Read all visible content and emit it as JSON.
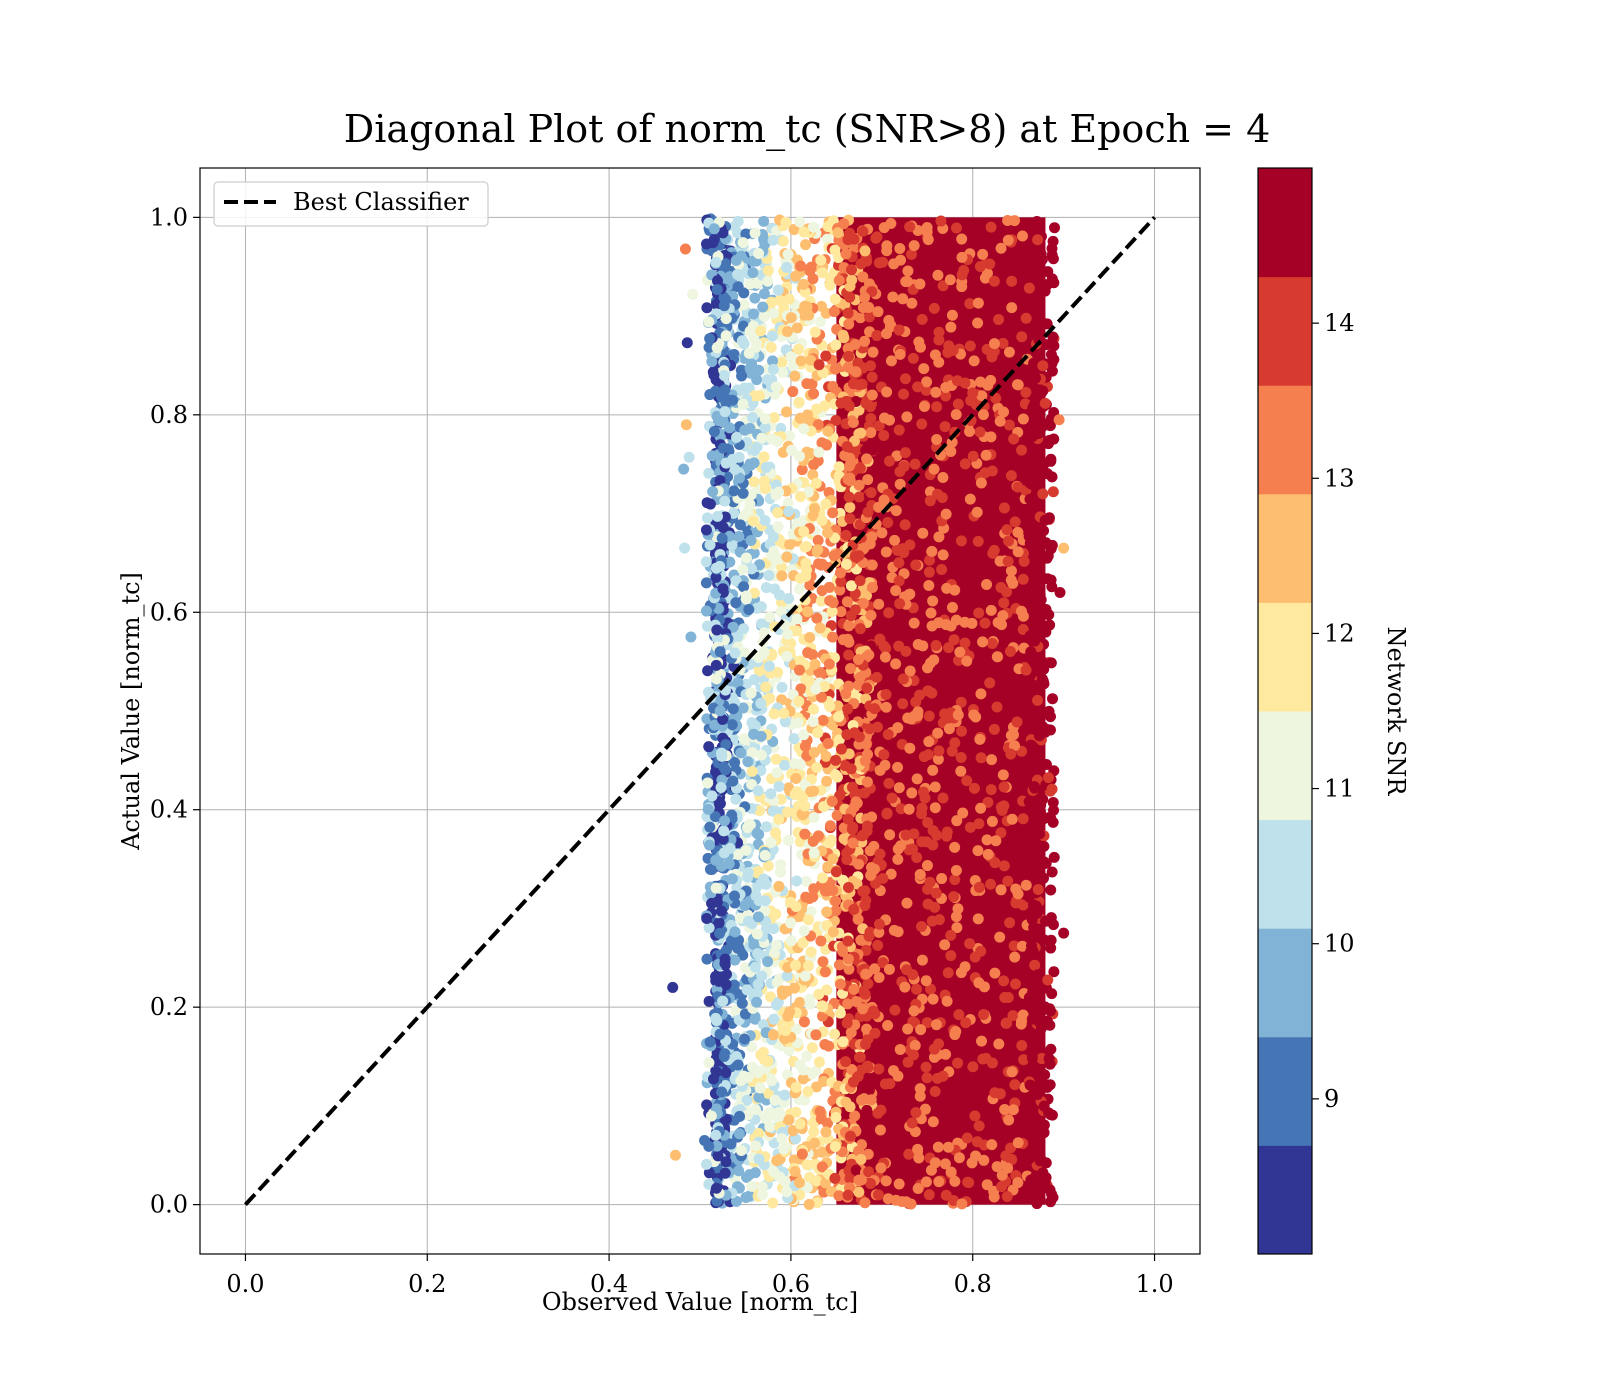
{
  "chart_data": {
    "type": "scatter",
    "title": "Diagonal Plot of norm_tc (SNR>8) at Epoch = 4",
    "xlabel": "Observed Value [norm_tc]",
    "ylabel": "Actual Value [norm_tc]",
    "xlim": [
      -0.05,
      1.05
    ],
    "ylim": [
      -0.05,
      1.05
    ],
    "xticks": [
      "0.0",
      "0.2",
      "0.4",
      "0.6",
      "0.8",
      "1.0"
    ],
    "yticks": [
      "0.0",
      "0.2",
      "0.4",
      "0.6",
      "0.8",
      "1.0"
    ],
    "grid": true,
    "legend": {
      "position": "upper left",
      "entries": [
        "Best Classifier"
      ]
    },
    "diagonal_line": {
      "name": "Best Classifier",
      "x": [
        0,
        1
      ],
      "y": [
        0,
        1
      ],
      "style": "dashed",
      "color": "#000000"
    },
    "scatter": {
      "color_variable": "Network SNR",
      "x_range": [
        0.47,
        0.9
      ],
      "y_range": [
        0.0,
        1.0
      ],
      "dense_high_snr_x_range": [
        0.65,
        0.88
      ],
      "isolated_points": [
        {
          "x": 0.47,
          "y": 0.22,
          "snr": 8.2
        },
        {
          "x": 0.473,
          "y": 0.05,
          "snr": 12.6
        },
        {
          "x": 0.484,
          "y": 0.968,
          "snr": 13.5
        },
        {
          "x": 0.486,
          "y": 0.873,
          "snr": 8.2
        },
        {
          "x": 0.482,
          "y": 0.745,
          "snr": 9.8
        },
        {
          "x": 0.483,
          "y": 0.665,
          "snr": 10.4
        },
        {
          "x": 0.485,
          "y": 0.79,
          "snr": 12.6
        },
        {
          "x": 0.492,
          "y": 0.922,
          "snr": 11.2
        },
        {
          "x": 0.488,
          "y": 0.757,
          "snr": 10.6
        },
        {
          "x": 0.49,
          "y": 0.575,
          "snr": 9.8
        },
        {
          "x": 0.505,
          "y": 0.065,
          "snr": 8.8
        },
        {
          "x": 0.9,
          "y": 0.275,
          "snr": 14.8
        },
        {
          "x": 0.9,
          "y": 0.665,
          "snr": 12.6
        },
        {
          "x": 0.895,
          "y": 0.795,
          "snr": 13.5
        },
        {
          "x": 0.896,
          "y": 0.62,
          "snr": 14.8
        },
        {
          "x": 0.885,
          "y": 0.015,
          "snr": 14.8
        }
      ]
    },
    "colorbar": {
      "label": "Network SNR",
      "vmin": 8,
      "vmax": 15,
      "ticks": [
        "9",
        "10",
        "11",
        "12",
        "13",
        "14"
      ],
      "tick_values": [
        9,
        10,
        11,
        12,
        13,
        14
      ],
      "colors": [
        "#313695",
        "#4575b4",
        "#80b3d6",
        "#bfe1eb",
        "#eef6df",
        "#fee99f",
        "#fdbf6f",
        "#f57f4f",
        "#d73a2e",
        "#a50026"
      ]
    }
  }
}
